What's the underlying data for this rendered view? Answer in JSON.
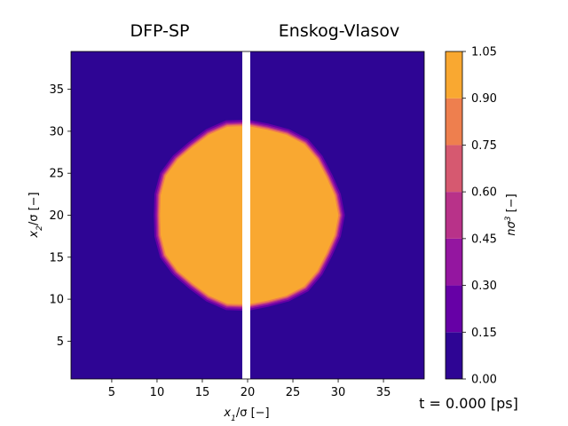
{
  "chart_data": {
    "type": "heatmap",
    "titles": {
      "left": "DFP-SP",
      "right": "Enskog-Vlasov"
    },
    "xlabel_main": "x",
    "xlabel_sub": "1",
    "xlabel_rest": "/σ [−]",
    "ylabel_main": "x",
    "ylabel_sub": "2",
    "ylabel_rest": "/σ [−]",
    "colorbar_label_main": "nσ",
    "colorbar_label_sup": "3",
    "colorbar_label_rest": " [−]",
    "time_label": "t = 0.000 [ps]",
    "xlim": [
      0.5,
      39.5
    ],
    "ylim": [
      0.5,
      39.5
    ],
    "x_ticks": [
      5,
      10,
      15,
      20,
      25,
      30,
      35
    ],
    "y_ticks": [
      5,
      10,
      15,
      20,
      25,
      30,
      35
    ],
    "colorbar_levels": [
      0.0,
      0.15,
      0.3,
      0.45,
      0.6,
      0.75,
      0.9,
      1.05
    ],
    "colorbar_tick_labels": [
      "0.00",
      "0.15",
      "0.30",
      "0.45",
      "0.60",
      "0.75",
      "0.90",
      "1.05"
    ],
    "colorbar_colors": [
      "#2e0594",
      "#6600a6",
      "#9416a0",
      "#b83289",
      "#d65970",
      "#ee7f4e",
      "#f9a831"
    ],
    "droplet": {
      "center_x": 20,
      "center_y": 20,
      "radius": 10,
      "inside_value": 0.98,
      "outside_value": 0.05
    },
    "separator_x": 20
  }
}
